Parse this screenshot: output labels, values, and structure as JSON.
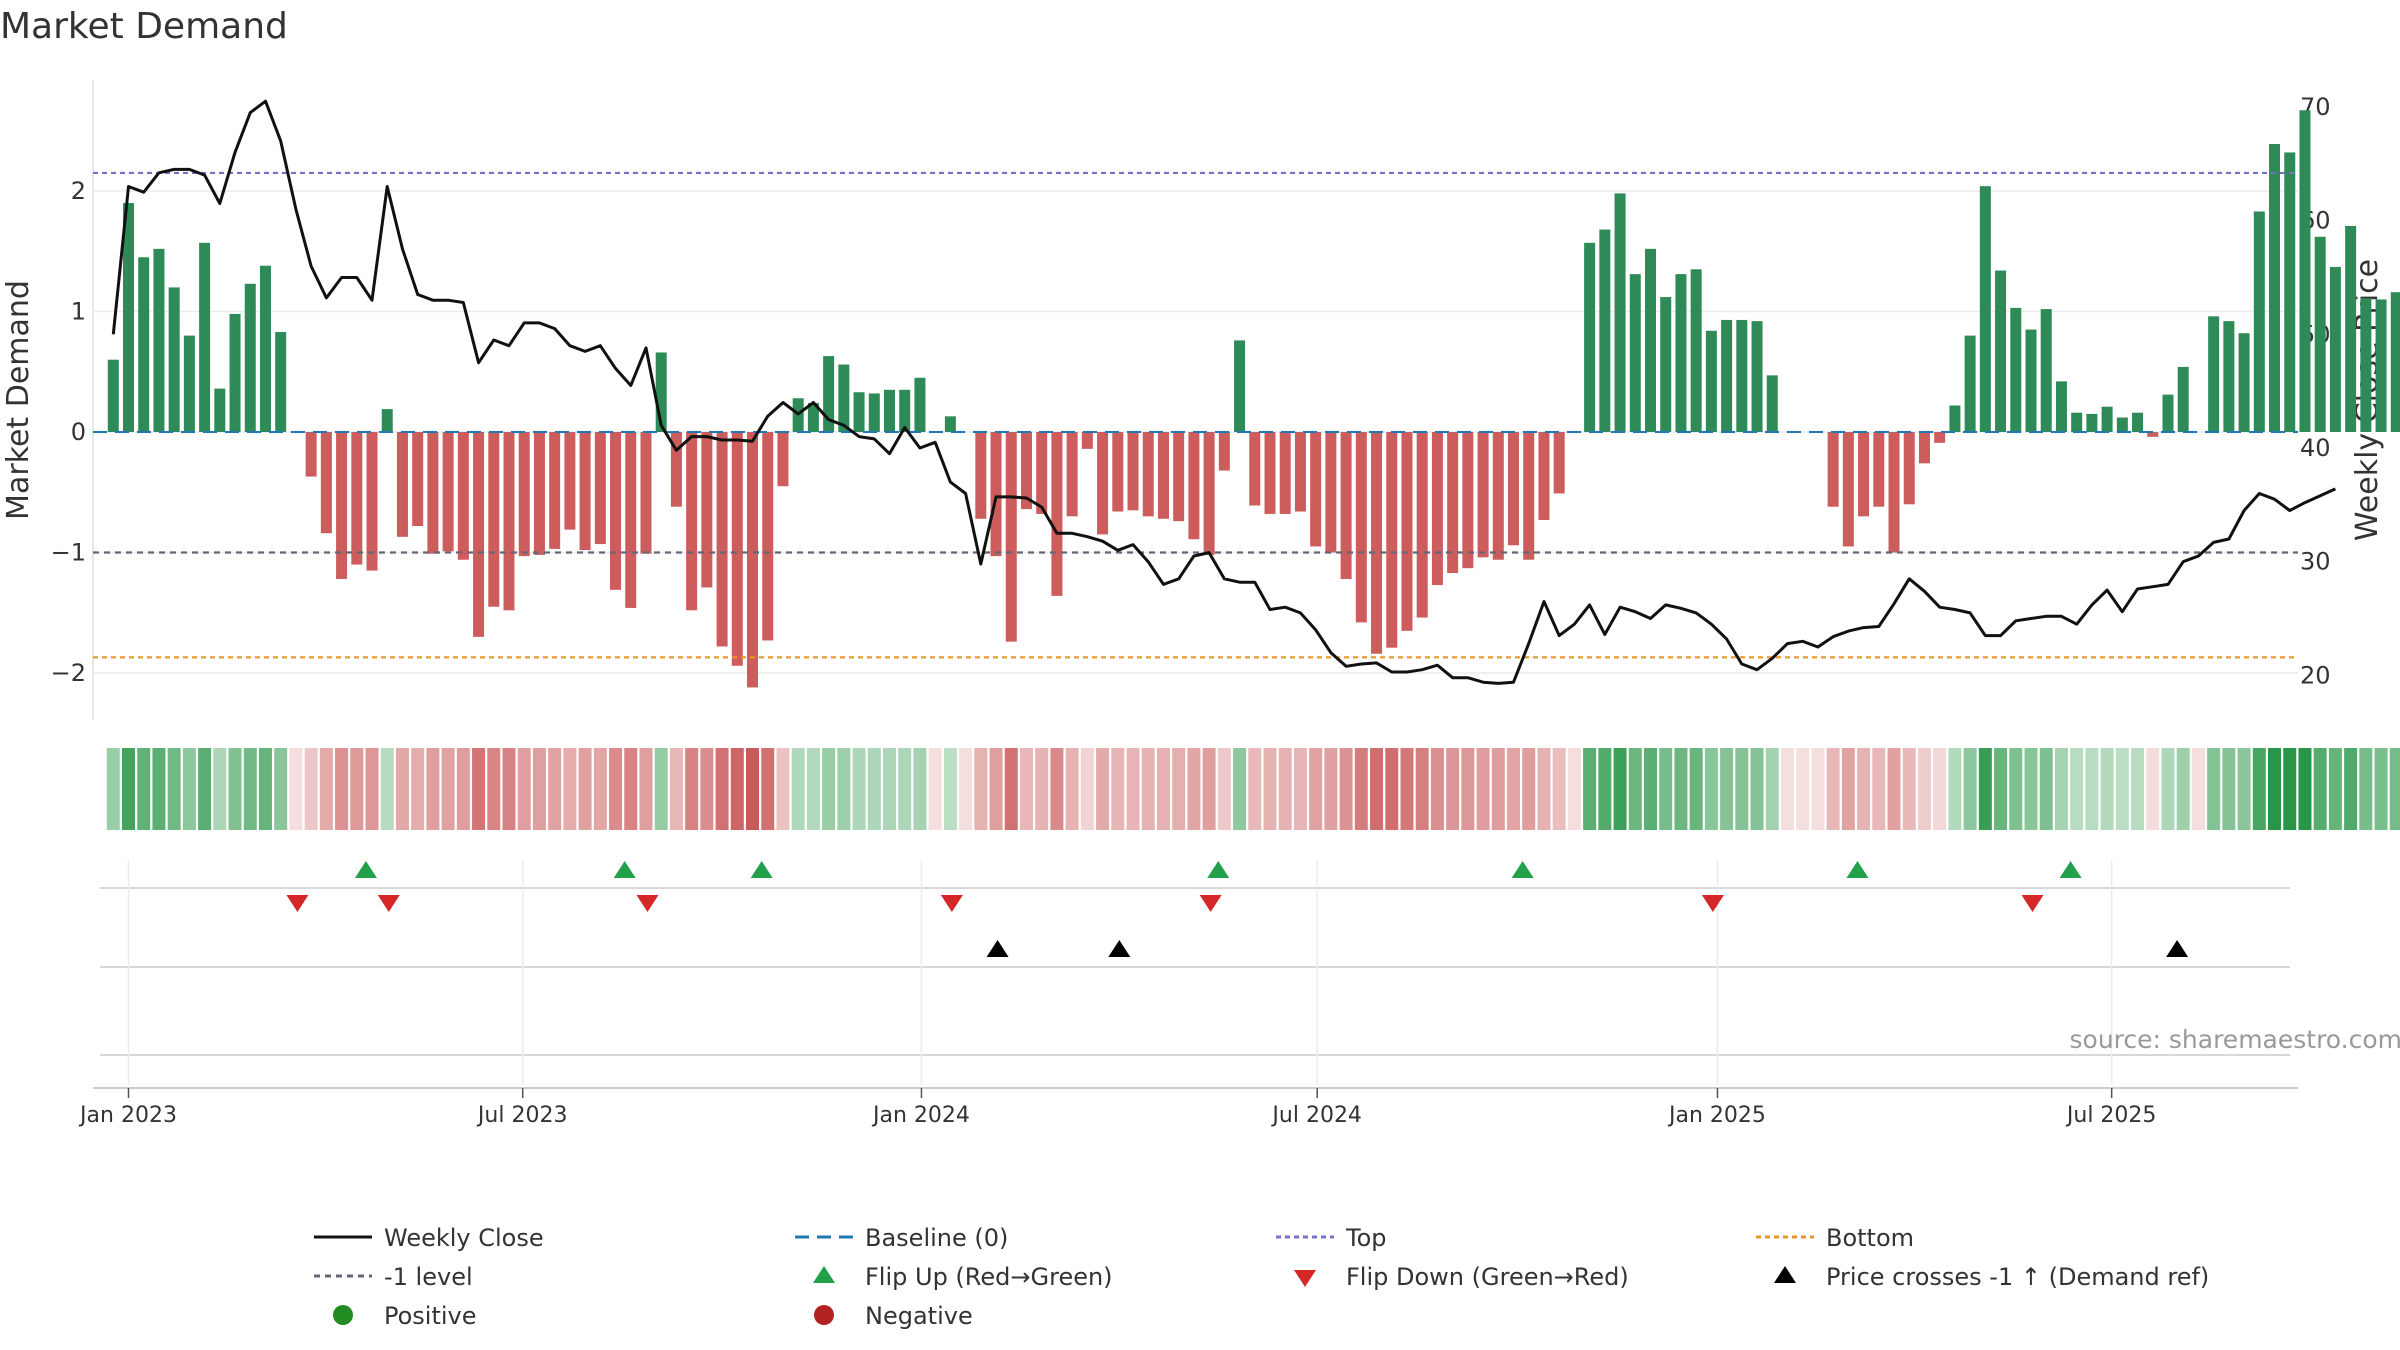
{
  "chart_data": {
    "type": "bar+line",
    "title": "Market Demand",
    "ylabel_left": "Market Demand",
    "ylabel_right": "Weekly Close Price",
    "ylim_left": [
      -2.4,
      2.9
    ],
    "ylim_right": [
      17,
      72
    ],
    "yticks_left": [
      {
        "value": 2,
        "label": "2"
      },
      {
        "value": 1,
        "label": "1"
      },
      {
        "value": 0,
        "label": "0"
      },
      {
        "value": -1,
        "label": "−1"
      },
      {
        "value": -2,
        "label": "−2"
      }
    ],
    "yticks_right": [
      {
        "value": 70,
        "label": "70"
      },
      {
        "value": 60,
        "label": "60"
      },
      {
        "value": 50,
        "label": "50"
      },
      {
        "value": 40,
        "label": "40"
      },
      {
        "value": 30,
        "label": "30"
      },
      {
        "value": 20,
        "label": "20"
      }
    ],
    "x_range_weeks": [
      -2,
      140
    ],
    "x_ticks": [
      {
        "week": 0,
        "label": "Jan 2023"
      },
      {
        "week": 25.9,
        "label": "Jul 2023"
      },
      {
        "week": 52.1,
        "label": "Jan 2024"
      },
      {
        "week": 78.1,
        "label": "Jul 2024"
      },
      {
        "week": 104.4,
        "label": "Jan 2025"
      },
      {
        "week": 130.3,
        "label": "Jul 2025"
      }
    ],
    "reference_lines": [
      {
        "name": "Top",
        "value": 2.15,
        "color": "#7570c9"
      },
      {
        "name": "-1 level",
        "value": -1,
        "color": "#666677"
      },
      {
        "name": "Bottom",
        "value": -1.87,
        "color": "#e8962c"
      }
    ],
    "demand": [
      0.6,
      1.9,
      1.45,
      1.52,
      1.2,
      0.8,
      1.57,
      0.36,
      0.98,
      1.23,
      1.38,
      0.83,
      0,
      -0.37,
      -0.84,
      -1.22,
      -1.1,
      -1.15,
      0.19,
      -0.87,
      -0.78,
      -1.01,
      -0.99,
      -1.06,
      -1.7,
      -1.45,
      -1.48,
      -1.03,
      -1.02,
      -0.97,
      -0.81,
      -0.98,
      -0.93,
      -1.31,
      -1.46,
      -1.01,
      0.66,
      -0.62,
      -1.48,
      -1.29,
      -1.78,
      -1.94,
      -2.12,
      -1.73,
      -0.45,
      0.28,
      0.24,
      0.63,
      0.56,
      0.33,
      0.32,
      0.35,
      0.35,
      0.45,
      0,
      0.13,
      0,
      -0.72,
      -1.03,
      -1.74,
      -0.64,
      -0.68,
      -1.36,
      -0.7,
      -0.14,
      -0.85,
      -0.66,
      -0.65,
      -0.7,
      -0.72,
      -0.74,
      -0.89,
      -1.02,
      -0.32,
      0.76,
      -0.61,
      -0.68,
      -0.68,
      -0.66,
      -0.95,
      -1.0,
      -1.22,
      -1.58,
      -1.84,
      -1.79,
      -1.65,
      -1.54,
      -1.27,
      -1.17,
      -1.13,
      -1.04,
      -1.06,
      -0.94,
      -1.06,
      -0.73,
      -0.51,
      0,
      1.57,
      1.68,
      1.98,
      1.31,
      1.52,
      1.12,
      1.31,
      1.35,
      0.84,
      0.93,
      0.93,
      0.92,
      0.47,
      0,
      0,
      0,
      -0.62,
      -0.95,
      -0.7,
      -0.62,
      -1.0,
      -0.6,
      -0.26,
      -0.09,
      0.22,
      0.8,
      2.04,
      1.34,
      1.03,
      0.85,
      1.02,
      0.42,
      0.16,
      0.15,
      0.21,
      0.12,
      0.16,
      -0.04,
      0.31,
      0.54,
      0,
      0.96,
      0.92,
      0.82,
      1.83,
      2.39,
      2.32,
      2.67,
      1.62,
      1.37,
      1.71,
      1.11,
      1.1,
      1.16
    ],
    "weekly_close": [
      50,
      63,
      62.5,
      64.2,
      64.5,
      64.5,
      64,
      61.5,
      66,
      69.5,
      70.5,
      67,
      61,
      56,
      53.2,
      55,
      55,
      53,
      63,
      57.5,
      53.5,
      53,
      53,
      52.8,
      47.5,
      49.5,
      49,
      51,
      51,
      50.5,
      49,
      48.5,
      49,
      47,
      45.5,
      48.8,
      42,
      39.8,
      41,
      41,
      40.7,
      40.7,
      40.6,
      42.8,
      44,
      43,
      44,
      42.5,
      42,
      41,
      40.8,
      39.5,
      41.8,
      40,
      40.5,
      37,
      36,
      29.8,
      35.7,
      35.7,
      35.6,
      34.8,
      32.5,
      32.5,
      32.2,
      31.8,
      31,
      31.5,
      30,
      28,
      28.5,
      30.5,
      30.8,
      28.5,
      28.2,
      28.2,
      25.8,
      26,
      25.5,
      24,
      22,
      20.8,
      21,
      21.1,
      20.3,
      20.3,
      20.5,
      20.9,
      19.8,
      19.8,
      19.4,
      19.3,
      19.4,
      22.8,
      26.5,
      23.5,
      24.5,
      26.2,
      23.6,
      26,
      25.6,
      25,
      26.2,
      25.9,
      25.5,
      24.5,
      23.2,
      21,
      20.5,
      21.5,
      22.8,
      23,
      22.5,
      23.4,
      23.9,
      24.2,
      24.3,
      26.3,
      28.5,
      27.4,
      26,
      25.8,
      25.5,
      23.5,
      23.5,
      24.8,
      25,
      25.2,
      25.2,
      24.5,
      26.2,
      27.5,
      25.6,
      27.6,
      27.8,
      28,
      30,
      30.5,
      31.7,
      32,
      34.5,
      36,
      35.5,
      34.5,
      35.2,
      35.8,
      36.4
    ],
    "flip_up_weeks": [
      15.6,
      32.6,
      41.6,
      71.6,
      91.6,
      113.6,
      127.6
    ],
    "flip_down_weeks": [
      11.1,
      17.1,
      34.1,
      54.1,
      71.1,
      104.1,
      125.1
    ],
    "price_cross_weeks": [
      57.1,
      65.1,
      134.6
    ],
    "legend": {
      "weekly_close": "Weekly Close",
      "baseline": "Baseline (0)",
      "top": "Top",
      "bottom": "Bottom",
      "minus1": "-1 level",
      "flip_up": "Flip Up (Red→Green)",
      "flip_down": "Flip Down (Green→Red)",
      "price_cross": "Price crosses -1 ↑ (Demand ref)",
      "positive": "Positive",
      "negative": "Negative"
    },
    "source": "source: sharemaestro.com"
  },
  "colors": {
    "positive_bar": "#2e8a57",
    "negative_bar": "#cd5c5c",
    "close_line": "#111111",
    "baseline": "#1f77b4",
    "flip_up": "#22a04a",
    "flip_down": "#d62728",
    "price_cross": "#000000",
    "legend_positive_dot": "#228b22",
    "legend_negative_dot": "#b22222"
  }
}
